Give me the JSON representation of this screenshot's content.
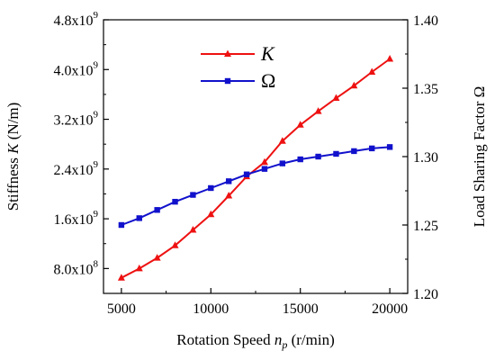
{
  "chart_data": {
    "type": "line",
    "x": [
      5000,
      6000,
      7000,
      8000,
      9000,
      10000,
      11000,
      12000,
      13000,
      14000,
      15000,
      16000,
      17000,
      18000,
      19000,
      20000
    ],
    "xlabel": {
      "main": "Rotation Speed ",
      "italic": "n",
      "sub": "p",
      "unit": " (r/min)"
    },
    "xlim": [
      4000,
      21000
    ],
    "xticks": [
      5000,
      10000,
      15000,
      20000
    ],
    "xtick_labels": [
      "5000",
      "10000",
      "15000",
      "20000"
    ],
    "ylabel_left": {
      "main": "Stiffness ",
      "italic": "K",
      "unit": " (N/m)"
    },
    "ylim_left": [
      400000000.0,
      4800000000.0
    ],
    "yticks_left": [
      800000000.0,
      1600000000.0,
      2400000000.0,
      3200000000.0,
      4000000000.0,
      4800000000.0
    ],
    "ytick_labels_left": [
      {
        "mant": "8.0x10",
        "exp": "8"
      },
      {
        "mant": "1.6x10",
        "exp": "9"
      },
      {
        "mant": "2.4x10",
        "exp": "9"
      },
      {
        "mant": "3.2x10",
        "exp": "9"
      },
      {
        "mant": "4.0x10",
        "exp": "9"
      },
      {
        "mant": "4.8x10",
        "exp": "9"
      }
    ],
    "ylabel_right": "Load Sharing Factor Ω",
    "ylim_right": [
      1.2,
      1.4
    ],
    "yticks_right": [
      1.2,
      1.25,
      1.3,
      1.35,
      1.4
    ],
    "ytick_labels_right": [
      "1.20",
      "1.25",
      "1.30",
      "1.35",
      "1.40"
    ],
    "series": [
      {
        "name": "K",
        "axis": "left",
        "color": "#ee1111",
        "marker": "triangle",
        "values": [
          650000000.0,
          800000000.0,
          970000000.0,
          1170000000.0,
          1420000000.0,
          1670000000.0,
          1970000000.0,
          2280000000.0,
          2510000000.0,
          2850000000.0,
          3110000000.0,
          3330000000.0,
          3540000000.0,
          3740000000.0,
          3960000000.0,
          4170000000.0
        ]
      },
      {
        "name": "Ω",
        "axis": "right",
        "color": "#1111cc",
        "marker": "square",
        "values": [
          1.25,
          1.255,
          1.261,
          1.267,
          1.272,
          1.277,
          1.282,
          1.287,
          1.291,
          1.295,
          1.298,
          1.3,
          1.302,
          1.304,
          1.306,
          1.307
        ]
      }
    ],
    "legend_position": "top-left",
    "grid": false
  }
}
